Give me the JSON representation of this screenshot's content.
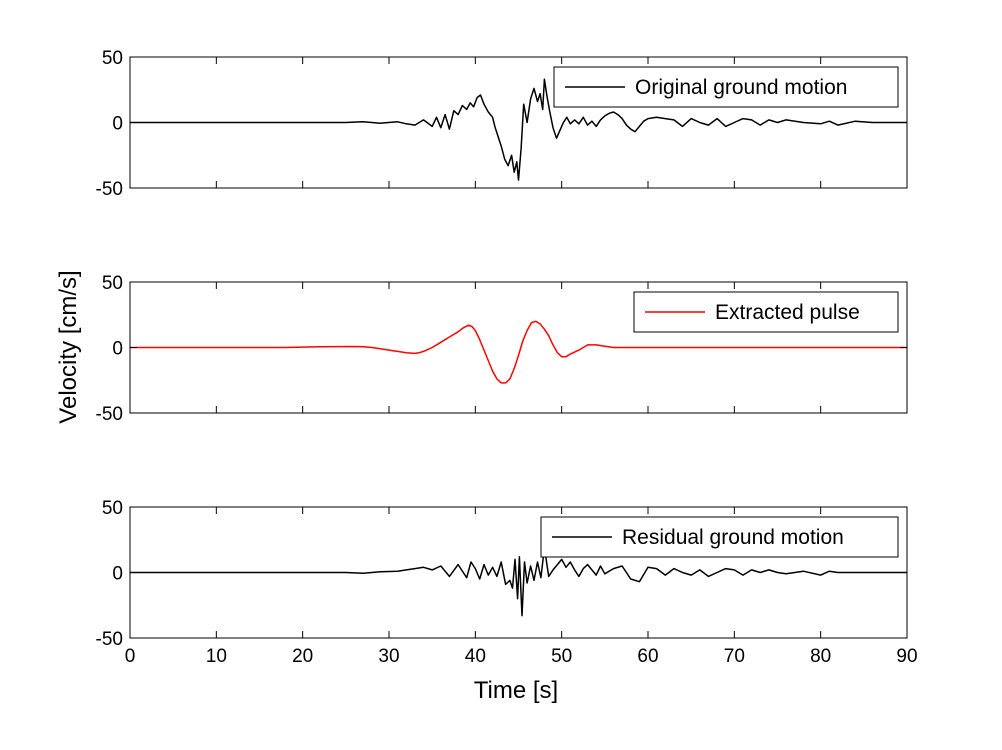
{
  "figure": {
    "ylabel": "Velocity [cm/s]",
    "xlabel": "Time [s]"
  },
  "chart_data": [
    {
      "type": "line",
      "xlim": [
        0,
        90
      ],
      "ylim": [
        -50,
        50
      ],
      "xticks": [
        0,
        10,
        20,
        30,
        40,
        50,
        60,
        70,
        80,
        90
      ],
      "yticks": [
        -50,
        0,
        50
      ],
      "show_x_ticklabels": false,
      "grid": false,
      "legend": "top-right",
      "series": [
        {
          "name": "Original ground motion",
          "color": "#000000",
          "x": [
            0,
            25,
            27,
            29,
            31,
            32,
            33,
            34,
            35,
            35.5,
            36,
            36.5,
            37,
            37.5,
            38,
            38.5,
            39,
            39.4,
            39.8,
            40.2,
            40.6,
            41,
            41.5,
            42,
            42.3,
            42.6,
            43,
            43.4,
            43.8,
            44.2,
            44.5,
            44.8,
            45,
            45.3,
            45.6,
            46,
            46.4,
            46.8,
            47.2,
            47.5,
            47.8,
            48,
            48.3,
            48.6,
            49,
            49.4,
            49.8,
            50.2,
            50.6,
            51,
            51.5,
            52,
            52.5,
            53,
            53.5,
            54,
            54.5,
            55,
            55.5,
            56,
            56.5,
            57,
            57.5,
            58,
            58.5,
            59,
            59.5,
            60,
            61,
            62,
            63,
            64,
            65,
            66,
            67,
            68,
            69,
            70,
            71,
            72,
            73,
            74,
            75,
            76,
            78,
            80,
            81,
            82,
            84,
            86,
            88,
            90
          ],
          "y": [
            0,
            0,
            0.5,
            -0.5,
            0.5,
            -1,
            -2,
            2,
            -3,
            4,
            -4,
            6,
            -5,
            9,
            6,
            13,
            10,
            15,
            12,
            19,
            21,
            14,
            8,
            4,
            -4,
            -10,
            -18,
            -28,
            -33,
            -25,
            -38,
            -30,
            -44,
            -20,
            14,
            0,
            18,
            26,
            16,
            22,
            10,
            33,
            20,
            9,
            -4,
            -12,
            -6,
            0,
            4,
            -1,
            2,
            -1,
            4,
            -2,
            1,
            -3,
            2,
            5,
            7,
            8,
            6,
            3,
            -2,
            -5,
            -7,
            -3,
            1,
            3,
            4,
            3,
            2,
            -3,
            3,
            0,
            -2,
            3,
            -3,
            0,
            3,
            2,
            -2,
            2,
            0,
            2,
            0,
            -1,
            1,
            -2,
            1,
            0,
            0,
            0
          ]
        }
      ]
    },
    {
      "type": "line",
      "xlim": [
        0,
        90
      ],
      "ylim": [
        -50,
        50
      ],
      "xticks": [
        0,
        10,
        20,
        30,
        40,
        50,
        60,
        70,
        80,
        90
      ],
      "yticks": [
        -50,
        0,
        50
      ],
      "show_x_ticklabels": false,
      "grid": false,
      "legend": "top-right",
      "series": [
        {
          "name": "Extracted pulse",
          "color": "#ff0000",
          "x": [
            0,
            18,
            20,
            22,
            24,
            26,
            27,
            28,
            29,
            30,
            31,
            32,
            33,
            33.5,
            34,
            35,
            36,
            37,
            38,
            38.6,
            39.2,
            39.6,
            40,
            40.5,
            41,
            41.5,
            42,
            42.5,
            43,
            43.5,
            44,
            44.5,
            45,
            45.5,
            46,
            46.5,
            47,
            47.5,
            48,
            48.5,
            49,
            49.5,
            50,
            50.5,
            51,
            52,
            53,
            54,
            55,
            56,
            58,
            60,
            62,
            64,
            90
          ],
          "y": [
            0,
            0,
            0.3,
            0.5,
            0.7,
            0.8,
            0.6,
            0,
            -1,
            -2,
            -3,
            -4,
            -4.5,
            -4,
            -3,
            0,
            4,
            8,
            12,
            15,
            17,
            16,
            13,
            6,
            -2,
            -10,
            -18,
            -24,
            -27,
            -27,
            -24,
            -16,
            -6,
            5,
            13,
            19,
            20,
            18,
            14,
            9,
            2,
            -4,
            -7,
            -7,
            -5,
            -2,
            2,
            2,
            1,
            0,
            0,
            0,
            0,
            0,
            0
          ]
        }
      ]
    },
    {
      "type": "line",
      "xlim": [
        0,
        90
      ],
      "ylim": [
        -50,
        50
      ],
      "xticks": [
        0,
        10,
        20,
        30,
        40,
        50,
        60,
        70,
        80,
        90
      ],
      "yticks": [
        -50,
        0,
        50
      ],
      "show_x_ticklabels": true,
      "grid": false,
      "legend": "top-right",
      "series": [
        {
          "name": "Residual ground motion",
          "color": "#000000",
          "x": [
            0,
            25,
            27,
            29,
            31,
            32,
            33,
            34,
            35,
            36,
            37,
            38,
            39,
            39.5,
            40,
            40.5,
            41,
            41.5,
            42,
            42.5,
            43,
            43.5,
            44,
            44.3,
            44.6,
            44.9,
            45.1,
            45.4,
            45.7,
            46,
            46.4,
            46.8,
            47.2,
            47.6,
            48,
            48.5,
            49,
            49.5,
            50,
            50.5,
            51,
            51.5,
            52,
            52.5,
            53,
            53.5,
            54,
            54.5,
            55,
            56,
            57,
            58,
            59,
            60,
            61,
            62,
            63,
            64,
            65,
            66,
            67,
            68,
            69,
            70,
            71,
            72,
            73,
            74,
            75,
            76,
            78,
            80,
            81,
            82,
            84,
            86,
            88,
            90
          ],
          "y": [
            0,
            0,
            -0.5,
            0.5,
            1,
            2,
            3,
            4,
            2,
            5,
            -3,
            6,
            -4,
            8,
            3,
            -5,
            6,
            -2,
            4,
            -3,
            8,
            -9,
            -6,
            -12,
            10,
            -20,
            12,
            -33,
            8,
            -8,
            5,
            -6,
            8,
            -4,
            19,
            -3,
            2,
            6,
            10,
            4,
            8,
            2,
            -3,
            3,
            6,
            2,
            -2,
            5,
            -1,
            3,
            5,
            -5,
            -7,
            4,
            3,
            -2,
            3,
            0,
            -2,
            2,
            -3,
            0,
            3,
            2,
            -2,
            2,
            0,
            2,
            0,
            -1,
            1,
            -2,
            1,
            0,
            0,
            0,
            0,
            0
          ]
        }
      ]
    }
  ]
}
